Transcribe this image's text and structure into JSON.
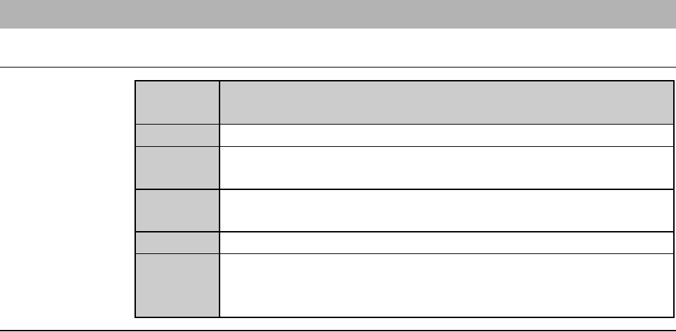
{
  "document": {
    "header_bar_color": "#b3b3b3",
    "table": {
      "rows": 6,
      "key_column_color": "#cccccc"
    }
  }
}
